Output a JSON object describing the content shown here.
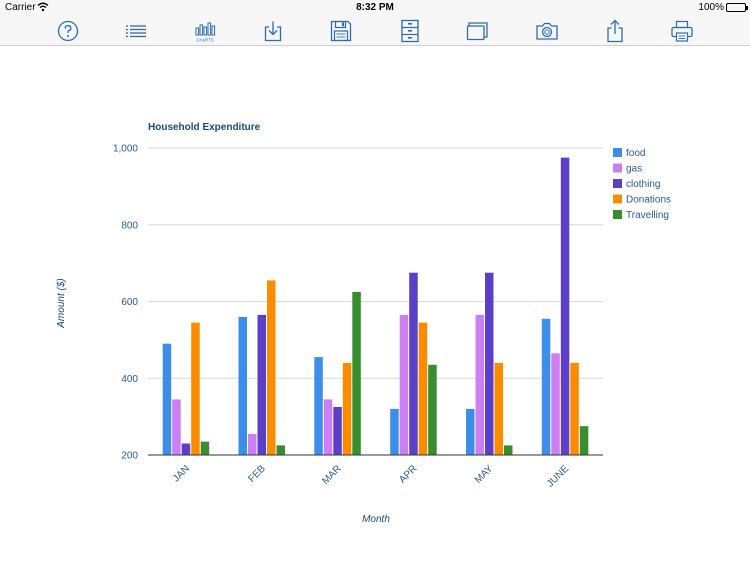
{
  "status_bar": {
    "carrier": "Carrier",
    "time": "8:32 PM",
    "battery": "100%"
  },
  "toolbar": {
    "items": [
      {
        "name": "help-icon",
        "icon": "question-circle"
      },
      {
        "name": "list-icon",
        "icon": "list"
      },
      {
        "name": "charts-icon",
        "icon": "bar-charts",
        "label": "CHARTS"
      },
      {
        "name": "download-icon",
        "icon": "tray-arrow-down"
      },
      {
        "name": "save-icon",
        "icon": "floppy-disk"
      },
      {
        "name": "cabinet-icon",
        "icon": "filing-cabinet"
      },
      {
        "name": "windows-icon",
        "icon": "stacked-windows"
      },
      {
        "name": "camera-icon",
        "icon": "camera"
      },
      {
        "name": "share-icon",
        "icon": "share-arrow-up"
      },
      {
        "name": "print-icon",
        "icon": "printer"
      }
    ],
    "color": "#2b6cb5"
  },
  "chart_data": {
    "type": "bar",
    "title": "Household Expenditure",
    "xlabel": "Month",
    "ylabel": "Amount ($)",
    "categories": [
      "JAN",
      "FEB",
      "MAR",
      "APR",
      "MAY",
      "JUNE"
    ],
    "ylim": [
      200,
      1000
    ],
    "yticks": [
      "200",
      "400",
      "600",
      "800",
      "1,000"
    ],
    "ytick_values": [
      200,
      400,
      600,
      800,
      1000
    ],
    "grid": true,
    "legend_position": "right",
    "series": [
      {
        "name": "food",
        "color": "#3d8ee8",
        "values": [
          490,
          560,
          455,
          320,
          320,
          555
        ]
      },
      {
        "name": "gas",
        "color": "#cc7ff2",
        "values": [
          345,
          255,
          345,
          565,
          565,
          465
        ]
      },
      {
        "name": "clothing",
        "color": "#5b3fc8",
        "values": [
          230,
          565,
          325,
          675,
          675,
          975
        ]
      },
      {
        "name": "Donations",
        "color": "#fb8c00",
        "values": [
          545,
          655,
          440,
          545,
          440,
          440
        ]
      },
      {
        "name": "Travelling",
        "color": "#388e2f",
        "values": [
          235,
          225,
          625,
          435,
          225,
          275
        ]
      }
    ]
  }
}
